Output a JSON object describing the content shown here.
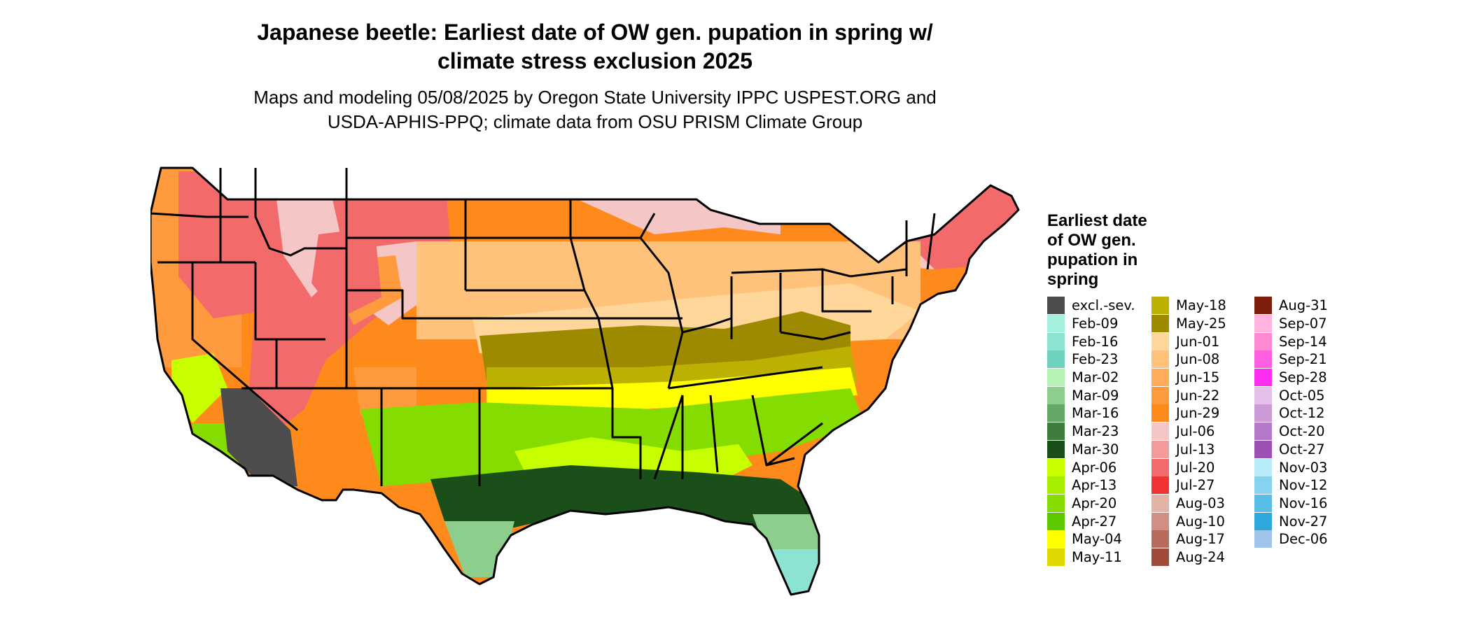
{
  "title_line1": "Japanese beetle: Earliest date of OW gen. pupation in spring w/",
  "title_line2": "climate stress exclusion 2025",
  "subtitle_line1": "Maps and modeling 05/08/2025 by Oregon State University IPPC USPEST.ORG and",
  "subtitle_line2": "USDA-APHIS-PPQ; climate data from OSU PRISM Climate Group",
  "legend": {
    "title_lines": [
      "Earliest date",
      "of OW gen.",
      "pupation in",
      "spring"
    ],
    "columns": [
      [
        {
          "label": "excl.-sev.",
          "color": "#4d4d4d"
        },
        {
          "label": "Feb-09",
          "color": "#a6f1de"
        },
        {
          "label": "Feb-16",
          "color": "#8ce3d1"
        },
        {
          "label": "Feb-23",
          "color": "#6fd1c0"
        },
        {
          "label": "Mar-02",
          "color": "#b5f3b5"
        },
        {
          "label": "Mar-09",
          "color": "#8dce8d"
        },
        {
          "label": "Mar-16",
          "color": "#65a865"
        },
        {
          "label": "Mar-23",
          "color": "#3f7d3f"
        },
        {
          "label": "Mar-30",
          "color": "#1a4f1a"
        },
        {
          "label": "Apr-06",
          "color": "#c8ff00"
        },
        {
          "label": "Apr-13",
          "color": "#a8ee00"
        },
        {
          "label": "Apr-20",
          "color": "#84dc00"
        },
        {
          "label": "Apr-27",
          "color": "#5cc800"
        },
        {
          "label": "May-04",
          "color": "#ffff00"
        },
        {
          "label": "May-11",
          "color": "#e0d800"
        }
      ],
      [
        {
          "label": "May-18",
          "color": "#bcb000"
        },
        {
          "label": "May-25",
          "color": "#9e8a00"
        },
        {
          "label": "Jun-01",
          "color": "#ffd79a"
        },
        {
          "label": "Jun-08",
          "color": "#ffc27a"
        },
        {
          "label": "Jun-15",
          "color": "#ffad5a"
        },
        {
          "label": "Jun-22",
          "color": "#ff9a3e"
        },
        {
          "label": "Jun-29",
          "color": "#ff8a1c"
        },
        {
          "label": "Jul-06",
          "color": "#f5c6c6"
        },
        {
          "label": "Jul-13",
          "color": "#f39a9a"
        },
        {
          "label": "Jul-20",
          "color": "#f26a6a"
        },
        {
          "label": "Jul-27",
          "color": "#f03434"
        },
        {
          "label": "Aug-03",
          "color": "#e3b3a8"
        },
        {
          "label": "Aug-10",
          "color": "#cf8f83"
        },
        {
          "label": "Aug-17",
          "color": "#b86a5c"
        },
        {
          "label": "Aug-24",
          "color": "#a04a3a"
        }
      ],
      [
        {
          "label": "Aug-31",
          "color": "#7e1e0c"
        },
        {
          "label": "Sep-07",
          "color": "#ffb3de"
        },
        {
          "label": "Sep-14",
          "color": "#ff8ad3"
        },
        {
          "label": "Sep-21",
          "color": "#ff5fe0"
        },
        {
          "label": "Sep-28",
          "color": "#ff2df0"
        },
        {
          "label": "Oct-05",
          "color": "#e3c0ea"
        },
        {
          "label": "Oct-12",
          "color": "#cd9ad8"
        },
        {
          "label": "Oct-20",
          "color": "#b678c8"
        },
        {
          "label": "Oct-27",
          "color": "#9c50b4"
        },
        {
          "label": "Nov-03",
          "color": "#b8ecf8"
        },
        {
          "label": "Nov-12",
          "color": "#86d3ef"
        },
        {
          "label": "Nov-16",
          "color": "#58bee6"
        },
        {
          "label": "Nov-27",
          "color": "#2ea8db"
        },
        {
          "label": "Dec-06",
          "color": "#a0c4ea"
        }
      ]
    ]
  },
  "map_colors": {
    "ocean": "#ffffff",
    "border": "#000000",
    "pacific_nw": "#ff9a3e",
    "mountains": "#f26a6a",
    "peaks": "#f5c6c6",
    "plains_north": "#ff8a1c",
    "plains_mid": "#ffc27a",
    "corn_belt": "#ffd79a",
    "ozark_band": "#9e8a00",
    "appalachian": "#bcb000",
    "tn_band": "#ffff00",
    "deep_south": "#84dc00",
    "gulf": "#1a4f1a",
    "florida": "#8dce8d",
    "fl_tip": "#8ce3d1",
    "desert": "#4d4d4d",
    "ca_valley": "#c8ff00"
  }
}
